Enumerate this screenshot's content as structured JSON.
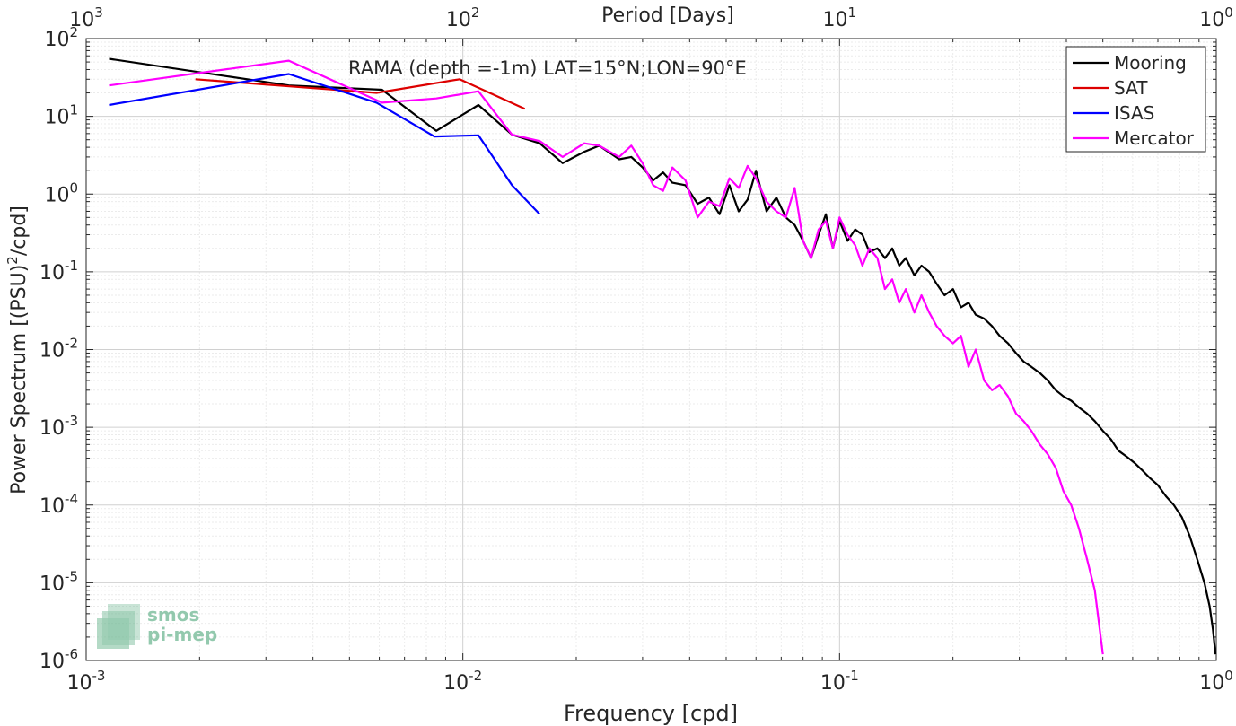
{
  "chart_data": {
    "type": "line",
    "title": "RAMA (depth =-1m) LAT=15°N;LON=90°E",
    "xlabel": "Frequency [cpd]",
    "ylabel": "Power Spectrum [(PSU)",
    "ylabel_sup": "2",
    "ylabel_tail": "/cpd]",
    "top_xlabel": "Period [Days]",
    "x_scale": "log",
    "y_scale": "log",
    "xlim": [
      0.001,
      1
    ],
    "ylim": [
      1e-06,
      100
    ],
    "grid": true,
    "legend_position": "top-right",
    "x_ticks": [
      {
        "base": "10",
        "exp": "-3"
      },
      {
        "base": "10",
        "exp": "-2"
      },
      {
        "base": "10",
        "exp": "-1"
      },
      {
        "base": "10",
        "exp": "0"
      }
    ],
    "y_ticks": [
      {
        "base": "10",
        "exp": "-6"
      },
      {
        "base": "10",
        "exp": "-5"
      },
      {
        "base": "10",
        "exp": "-4"
      },
      {
        "base": "10",
        "exp": "-3"
      },
      {
        "base": "10",
        "exp": "-2"
      },
      {
        "base": "10",
        "exp": "-1"
      },
      {
        "base": "10",
        "exp": "0"
      },
      {
        "base": "10",
        "exp": "1"
      },
      {
        "base": "10",
        "exp": "2"
      }
    ],
    "top_ticks": [
      {
        "base": "10",
        "exp": "3"
      },
      {
        "base": "10",
        "exp": "2"
      },
      {
        "base": "10",
        "exp": "1"
      },
      {
        "base": "10",
        "exp": "0"
      }
    ],
    "series": [
      {
        "name": "Mooring",
        "color": "#000000",
        "x": [
          0.00115,
          0.00345,
          0.0061,
          0.0085,
          0.011,
          0.0135,
          0.016,
          0.0184,
          0.021,
          0.023,
          0.026,
          0.028,
          0.03,
          0.032,
          0.034,
          0.036,
          0.039,
          0.042,
          0.045,
          0.048,
          0.051,
          0.054,
          0.057,
          0.06,
          0.064,
          0.068,
          0.072,
          0.076,
          0.08,
          0.084,
          0.088,
          0.092,
          0.096,
          0.1,
          0.105,
          0.11,
          0.115,
          0.12,
          0.126,
          0.132,
          0.138,
          0.144,
          0.15,
          0.158,
          0.165,
          0.173,
          0.181,
          0.19,
          0.2,
          0.21,
          0.22,
          0.23,
          0.242,
          0.254,
          0.266,
          0.28,
          0.294,
          0.308,
          0.323,
          0.34,
          0.357,
          0.375,
          0.393,
          0.412,
          0.432,
          0.454,
          0.476,
          0.5,
          0.525,
          0.55,
          0.578,
          0.606,
          0.636,
          0.668,
          0.7,
          0.735,
          0.772,
          0.81,
          0.85,
          0.89,
          0.93,
          0.96,
          0.98,
          0.995
        ],
        "y": [
          55,
          25,
          22,
          6.5,
          14,
          5.8,
          4.5,
          2.5,
          3.5,
          4.2,
          2.8,
          3.0,
          2.2,
          1.5,
          1.9,
          1.4,
          1.3,
          0.75,
          0.9,
          0.55,
          1.3,
          0.6,
          0.85,
          2.0,
          0.6,
          0.9,
          0.5,
          0.4,
          0.25,
          0.15,
          0.3,
          0.55,
          0.2,
          0.45,
          0.25,
          0.35,
          0.3,
          0.18,
          0.2,
          0.15,
          0.2,
          0.12,
          0.15,
          0.09,
          0.12,
          0.1,
          0.07,
          0.05,
          0.06,
          0.035,
          0.04,
          0.028,
          0.025,
          0.02,
          0.015,
          0.012,
          0.009,
          0.007,
          0.006,
          0.005,
          0.004,
          0.003,
          0.0025,
          0.0022,
          0.0018,
          0.0015,
          0.0012,
          0.0009,
          0.0007,
          0.0005,
          0.00042,
          0.00035,
          0.00028,
          0.00022,
          0.00018,
          0.00013,
          0.0001,
          7e-05,
          4e-05,
          2e-05,
          1e-05,
          5e-06,
          2.5e-06,
          1.2e-06
        ]
      },
      {
        "name": "SAT",
        "color": "#dd0000",
        "x": [
          0.00195,
          0.0059,
          0.0098,
          0.0146
        ],
        "y": [
          30,
          20,
          30,
          12.5
        ]
      },
      {
        "name": "ISAS",
        "color": "#0000ff",
        "x": [
          0.00115,
          0.00345,
          0.0059,
          0.0084,
          0.011,
          0.0135,
          0.016
        ],
        "y": [
          14,
          35,
          15,
          5.5,
          5.7,
          1.3,
          0.55
        ]
      },
      {
        "name": "Mercator",
        "color": "#ff00ff",
        "x": [
          0.00115,
          0.00345,
          0.0061,
          0.0085,
          0.011,
          0.0135,
          0.016,
          0.0184,
          0.021,
          0.023,
          0.026,
          0.028,
          0.03,
          0.032,
          0.034,
          0.036,
          0.039,
          0.042,
          0.045,
          0.048,
          0.051,
          0.054,
          0.057,
          0.06,
          0.064,
          0.068,
          0.072,
          0.076,
          0.08,
          0.084,
          0.088,
          0.092,
          0.096,
          0.1,
          0.105,
          0.11,
          0.115,
          0.12,
          0.126,
          0.132,
          0.138,
          0.144,
          0.15,
          0.158,
          0.165,
          0.173,
          0.181,
          0.19,
          0.2,
          0.21,
          0.22,
          0.23,
          0.242,
          0.254,
          0.266,
          0.28,
          0.294,
          0.308,
          0.323,
          0.34,
          0.357,
          0.375,
          0.393,
          0.412,
          0.432,
          0.454,
          0.476,
          0.5
        ],
        "y": [
          25,
          52,
          15,
          17,
          21,
          5.8,
          4.8,
          3.0,
          4.5,
          4.2,
          3.0,
          4.2,
          2.5,
          1.3,
          1.1,
          2.2,
          1.5,
          0.5,
          0.8,
          0.7,
          1.6,
          1.2,
          2.3,
          1.6,
          0.8,
          0.6,
          0.5,
          1.2,
          0.25,
          0.15,
          0.35,
          0.45,
          0.2,
          0.5,
          0.3,
          0.22,
          0.12,
          0.2,
          0.15,
          0.06,
          0.08,
          0.04,
          0.06,
          0.03,
          0.05,
          0.03,
          0.02,
          0.015,
          0.012,
          0.015,
          0.006,
          0.01,
          0.004,
          0.003,
          0.0035,
          0.0025,
          0.0015,
          0.0012,
          0.0009,
          0.0006,
          0.00045,
          0.0003,
          0.00015,
          0.0001,
          5e-05,
          2e-05,
          8e-06,
          1.2e-06
        ]
      }
    ]
  },
  "watermark": {
    "line1": "smos",
    "line2": "pi-mep",
    "color": "#6fb893"
  }
}
